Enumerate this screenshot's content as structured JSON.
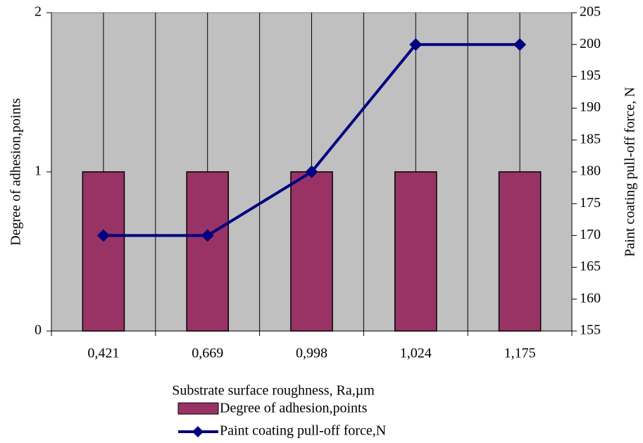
{
  "chart_data": {
    "type": "bar",
    "categories": [
      "0,421",
      "0,669",
      "0,998",
      "1,024",
      "1,175"
    ],
    "xlabel": "Substrate surface roughness, Ra,µm",
    "ylabel_left": "Degree of adhesion,points",
    "ylabel_right": "Paint coating pull-off force, N",
    "ylim_left": [
      0,
      2
    ],
    "yticks_left": [
      "0",
      "1",
      "2"
    ],
    "ylim_right": [
      155,
      205
    ],
    "yticks_right": [
      "155",
      "160",
      "165",
      "170",
      "175",
      "180",
      "185",
      "190",
      "195",
      "200",
      "205"
    ],
    "grid": "vertical",
    "plot_background": "#c0c0c0",
    "legend_position": "bottom",
    "series": [
      {
        "name": "Degree of adhesion,points",
        "type": "bar",
        "axis": "left",
        "color": "#993366",
        "values": [
          1,
          1,
          1,
          1,
          1
        ]
      },
      {
        "name": "Paint coating pull-off force,N",
        "type": "line",
        "axis": "right",
        "color": "#000080",
        "marker": "diamond",
        "values": [
          170,
          170,
          180,
          200,
          200
        ]
      }
    ]
  }
}
